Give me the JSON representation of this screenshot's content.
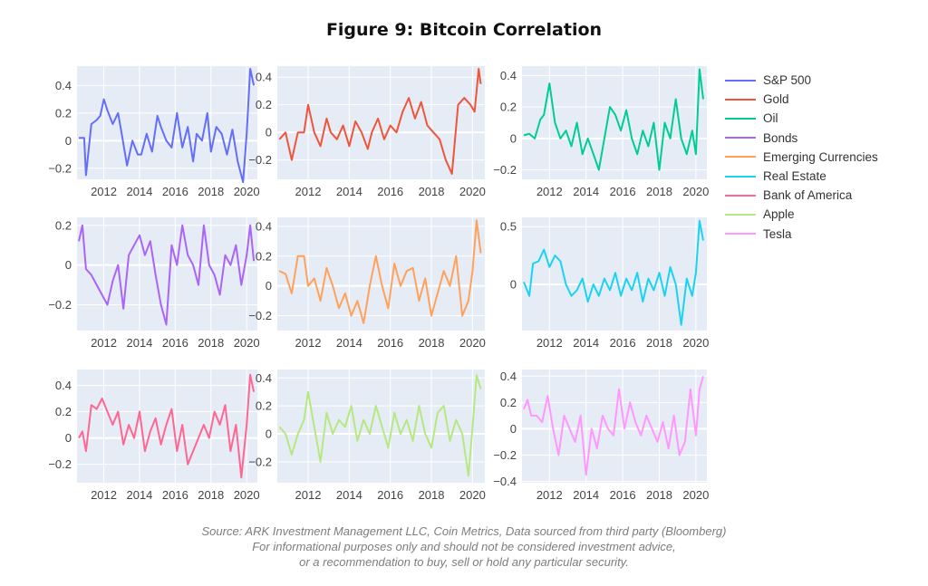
{
  "title": "Figure 9: Bitcoin Correlation",
  "colors": {
    "plot_bg": "#e5ecf6",
    "grid": "#ffffff",
    "tick_text": "#444444"
  },
  "legend": {
    "items": [
      {
        "label": "S&P 500",
        "color": "#636efa"
      },
      {
        "label": "Gold",
        "color": "#ef553b"
      },
      {
        "label": "Oil",
        "color": "#00cc96"
      },
      {
        "label": "Bonds",
        "color": "#ab63fa"
      },
      {
        "label": "Emerging Currencies",
        "color": "#ffa15a"
      },
      {
        "label": "Real Estate",
        "color": "#19d3f3"
      },
      {
        "label": "Bank of America",
        "color": "#ff6692"
      },
      {
        "label": "Apple",
        "color": "#b6e880"
      },
      {
        "label": "Tesla",
        "color": "#ff97ff"
      }
    ]
  },
  "source": {
    "line1": "Source: ARK Investment Management LLC, Coin Metrics, Data sourced from third party (Bloomberg)",
    "line2": "For informational purposes only and should not be considered investment advice,",
    "line3": "or a recommendation to buy, sell or hold any particular security."
  },
  "chart_data": [
    {
      "type": "line",
      "name": "S&P 500",
      "color": "#636efa",
      "xlim": [
        2010.5,
        2020.6
      ],
      "ylim": [
        -0.28,
        0.54
      ],
      "yticks": [
        -0.2,
        0,
        0.2,
        0.4
      ],
      "ytick_labels": [
        "−0.2",
        "0",
        "0.2",
        "0.4"
      ],
      "xticks": [
        2012,
        2014,
        2016,
        2018,
        2020
      ],
      "xtick_labels": [
        "2012",
        "2014",
        "2016",
        "2018",
        "2020"
      ],
      "x": [
        2010.6,
        2010.9,
        2011.0,
        2011.3,
        2011.6,
        2011.8,
        2012.0,
        2012.2,
        2012.5,
        2012.8,
        2013.0,
        2013.3,
        2013.6,
        2013.9,
        2014.1,
        2014.4,
        2014.7,
        2015.0,
        2015.2,
        2015.5,
        2015.8,
        2016.1,
        2016.4,
        2016.7,
        2017.0,
        2017.2,
        2017.5,
        2017.8,
        2018.0,
        2018.3,
        2018.6,
        2018.9,
        2019.2,
        2019.5,
        2019.8,
        2020.0,
        2020.2,
        2020.4
      ],
      "y": [
        0.02,
        0.02,
        -0.25,
        0.12,
        0.15,
        0.18,
        0.3,
        0.22,
        0.12,
        0.2,
        0.05,
        -0.18,
        0.0,
        -0.1,
        -0.1,
        0.05,
        -0.08,
        0.18,
        0.1,
        0.0,
        -0.05,
        0.2,
        -0.05,
        0.1,
        -0.15,
        0.05,
        0.0,
        0.2,
        -0.08,
        0.1,
        0.05,
        -0.1,
        0.08,
        -0.15,
        -0.3,
        0.05,
        0.52,
        0.4
      ]
    },
    {
      "type": "line",
      "name": "Gold",
      "color": "#ef553b",
      "xlim": [
        2010.5,
        2020.6
      ],
      "ylim": [
        -0.34,
        0.48
      ],
      "yticks": [
        -0.2,
        0,
        0.2,
        0.4
      ],
      "ytick_labels": [
        "−0.2",
        "0",
        "0.2",
        "0.4"
      ],
      "xticks": [
        2012,
        2014,
        2016,
        2018,
        2020
      ],
      "xtick_labels": [
        "2012",
        "2014",
        "2016",
        "2018",
        "2020"
      ],
      "x": [
        2010.6,
        2010.9,
        2011.2,
        2011.5,
        2011.8,
        2012.0,
        2012.3,
        2012.6,
        2012.9,
        2013.1,
        2013.4,
        2013.7,
        2014.0,
        2014.3,
        2014.6,
        2014.9,
        2015.1,
        2015.4,
        2015.7,
        2016.0,
        2016.3,
        2016.6,
        2016.9,
        2017.2,
        2017.5,
        2017.8,
        2018.1,
        2018.4,
        2018.7,
        2019.0,
        2019.3,
        2019.6,
        2019.9,
        2020.1,
        2020.3,
        2020.4
      ],
      "y": [
        -0.05,
        0.0,
        -0.2,
        0.0,
        0.0,
        0.2,
        0.0,
        -0.1,
        0.1,
        0.0,
        -0.05,
        0.05,
        -0.1,
        0.08,
        0.0,
        -0.12,
        0.0,
        0.1,
        -0.05,
        0.05,
        0.0,
        0.15,
        0.25,
        0.1,
        0.22,
        0.05,
        0.0,
        -0.05,
        -0.2,
        -0.3,
        0.2,
        0.25,
        0.2,
        0.15,
        0.46,
        0.35
      ]
    },
    {
      "type": "line",
      "name": "Oil",
      "color": "#00cc96",
      "xlim": [
        2010.5,
        2020.6
      ],
      "ylim": [
        -0.26,
        0.46
      ],
      "yticks": [
        -0.2,
        0,
        0.2,
        0.4
      ],
      "ytick_labels": [
        "−0.2",
        "0",
        "0.2",
        "0.4"
      ],
      "xticks": [
        2012,
        2014,
        2016,
        2018,
        2020
      ],
      "xtick_labels": [
        "2012",
        "2014",
        "2016",
        "2018",
        "2020"
      ],
      "x": [
        2010.6,
        2010.9,
        2011.2,
        2011.5,
        2011.7,
        2012.0,
        2012.3,
        2012.6,
        2012.9,
        2013.2,
        2013.5,
        2013.8,
        2014.1,
        2014.4,
        2014.7,
        2015.0,
        2015.3,
        2015.6,
        2015.9,
        2016.2,
        2016.5,
        2016.8,
        2017.1,
        2017.4,
        2017.7,
        2018.0,
        2018.3,
        2018.6,
        2018.9,
        2019.2,
        2019.5,
        2019.8,
        2020.0,
        2020.2,
        2020.4
      ],
      "y": [
        0.02,
        0.03,
        0.0,
        0.12,
        0.15,
        0.35,
        0.1,
        0.0,
        0.05,
        -0.05,
        0.1,
        -0.1,
        0.0,
        -0.1,
        -0.2,
        0.0,
        0.2,
        0.15,
        0.05,
        0.18,
        0.0,
        -0.1,
        0.05,
        -0.05,
        0.1,
        -0.2,
        0.1,
        0.0,
        0.25,
        0.0,
        -0.1,
        0.05,
        -0.1,
        0.44,
        0.25
      ]
    },
    {
      "type": "line",
      "name": "Bonds",
      "color": "#ab63fa",
      "xlim": [
        2010.5,
        2020.6
      ],
      "ylim": [
        -0.33,
        0.24
      ],
      "yticks": [
        -0.2,
        0,
        0.2
      ],
      "ytick_labels": [
        "−0.2",
        "0",
        "0.2"
      ],
      "xticks": [
        2012,
        2014,
        2016,
        2018,
        2020
      ],
      "xtick_labels": [
        "2012",
        "2014",
        "2016",
        "2018",
        "2020"
      ],
      "x": [
        2010.6,
        2010.8,
        2011.0,
        2011.3,
        2011.6,
        2011.9,
        2012.2,
        2012.5,
        2012.8,
        2013.1,
        2013.4,
        2013.7,
        2014.0,
        2014.3,
        2014.6,
        2014.9,
        2015.2,
        2015.5,
        2015.8,
        2016.1,
        2016.4,
        2016.7,
        2017.0,
        2017.3,
        2017.6,
        2017.9,
        2018.2,
        2018.5,
        2018.8,
        2019.1,
        2019.4,
        2019.7,
        2020.0,
        2020.2,
        2020.4
      ],
      "y": [
        0.12,
        0.2,
        -0.02,
        -0.05,
        -0.1,
        -0.15,
        -0.2,
        -0.08,
        0.0,
        -0.22,
        0.05,
        0.1,
        0.15,
        0.05,
        0.12,
        -0.05,
        -0.2,
        -0.3,
        0.1,
        0.0,
        0.2,
        0.05,
        0.0,
        -0.1,
        0.2,
        0.0,
        -0.05,
        -0.15,
        0.05,
        0.0,
        0.1,
        -0.1,
        0.05,
        0.2,
        0.02
      ]
    },
    {
      "type": "line",
      "name": "Emerging Currencies",
      "color": "#ffa15a",
      "xlim": [
        2010.5,
        2020.6
      ],
      "ylim": [
        -0.3,
        0.46
      ],
      "yticks": [
        -0.2,
        0,
        0.2,
        0.4
      ],
      "ytick_labels": [
        "−0.2",
        "0",
        "0.2",
        "0.4"
      ],
      "xticks": [
        2012,
        2014,
        2016,
        2018,
        2020
      ],
      "xtick_labels": [
        "2012",
        "2014",
        "2016",
        "2018",
        "2020"
      ],
      "x": [
        2010.6,
        2010.9,
        2011.2,
        2011.5,
        2011.8,
        2012.0,
        2012.3,
        2012.6,
        2012.9,
        2013.2,
        2013.5,
        2013.8,
        2014.1,
        2014.4,
        2014.7,
        2015.0,
        2015.3,
        2015.6,
        2015.9,
        2016.2,
        2016.5,
        2016.8,
        2017.1,
        2017.4,
        2017.7,
        2018.0,
        2018.3,
        2018.6,
        2018.9,
        2019.2,
        2019.5,
        2019.8,
        2020.0,
        2020.2,
        2020.4
      ],
      "y": [
        0.1,
        0.08,
        -0.05,
        0.2,
        0.2,
        0.0,
        0.05,
        -0.1,
        0.12,
        0.0,
        -0.15,
        -0.05,
        -0.2,
        -0.1,
        -0.25,
        0.0,
        0.2,
        0.0,
        -0.15,
        0.15,
        0.0,
        0.1,
        0.12,
        -0.1,
        0.05,
        -0.2,
        -0.05,
        0.1,
        0.0,
        0.2,
        -0.2,
        -0.1,
        0.1,
        0.44,
        0.22
      ]
    },
    {
      "type": "line",
      "name": "Real Estate",
      "color": "#19d3f3",
      "xlim": [
        2010.5,
        2020.6
      ],
      "ylim": [
        -0.4,
        0.58
      ],
      "yticks": [
        0,
        0.5
      ],
      "ytick_labels": [
        "0",
        "0.5"
      ],
      "xticks": [
        2012,
        2014,
        2016,
        2018,
        2020
      ],
      "xtick_labels": [
        "2012",
        "2014",
        "2016",
        "2018",
        "2020"
      ],
      "x": [
        2010.6,
        2010.9,
        2011.1,
        2011.4,
        2011.7,
        2012.0,
        2012.3,
        2012.6,
        2012.9,
        2013.2,
        2013.5,
        2013.8,
        2014.1,
        2014.4,
        2014.7,
        2015.0,
        2015.3,
        2015.6,
        2015.9,
        2016.2,
        2016.5,
        2016.8,
        2017.1,
        2017.4,
        2017.7,
        2018.0,
        2018.3,
        2018.6,
        2018.9,
        2019.2,
        2019.5,
        2019.8,
        2020.0,
        2020.2,
        2020.4
      ],
      "y": [
        0.02,
        -0.1,
        0.18,
        0.2,
        0.3,
        0.15,
        0.25,
        0.2,
        0.0,
        -0.1,
        -0.05,
        0.05,
        -0.15,
        0.0,
        -0.1,
        0.05,
        -0.05,
        0.1,
        -0.1,
        0.05,
        -0.05,
        0.1,
        -0.15,
        0.05,
        -0.05,
        0.1,
        -0.1,
        0.15,
        0.0,
        -0.35,
        0.05,
        -0.1,
        0.1,
        0.55,
        0.38
      ]
    },
    {
      "type": "line",
      "name": "Bank of America",
      "color": "#ff6692",
      "xlim": [
        2010.5,
        2020.6
      ],
      "ylim": [
        -0.34,
        0.52
      ],
      "yticks": [
        -0.2,
        0,
        0.2,
        0.4
      ],
      "ytick_labels": [
        "−0.2",
        "0",
        "0.2",
        "0.4"
      ],
      "xticks": [
        2012,
        2014,
        2016,
        2018,
        2020
      ],
      "xtick_labels": [
        "2012",
        "2014",
        "2016",
        "2018",
        "2020"
      ],
      "x": [
        2010.6,
        2010.8,
        2011.0,
        2011.3,
        2011.6,
        2011.9,
        2012.2,
        2012.5,
        2012.8,
        2013.1,
        2013.4,
        2013.7,
        2014.0,
        2014.3,
        2014.6,
        2014.9,
        2015.2,
        2015.5,
        2015.8,
        2016.1,
        2016.4,
        2016.7,
        2017.0,
        2017.3,
        2017.6,
        2017.9,
        2018.2,
        2018.5,
        2018.8,
        2019.1,
        2019.4,
        2019.7,
        2020.0,
        2020.2,
        2020.4
      ],
      "y": [
        0.0,
        0.05,
        -0.1,
        0.25,
        0.22,
        0.3,
        0.2,
        0.1,
        0.2,
        -0.05,
        0.1,
        0.0,
        0.2,
        -0.1,
        0.05,
        0.15,
        -0.05,
        0.1,
        0.22,
        -0.1,
        0.1,
        -0.2,
        -0.1,
        0.0,
        0.1,
        0.0,
        0.2,
        0.1,
        0.25,
        -0.1,
        0.1,
        -0.3,
        0.1,
        0.48,
        0.35
      ]
    },
    {
      "type": "line",
      "name": "Apple",
      "color": "#b6e880",
      "xlim": [
        2010.5,
        2020.6
      ],
      "ylim": [
        -0.35,
        0.46
      ],
      "yticks": [
        -0.2,
        0,
        0.2,
        0.4
      ],
      "ytick_labels": [
        "−0.2",
        "0",
        "0.2",
        "0.4"
      ],
      "xticks": [
        2012,
        2014,
        2016,
        2018,
        2020
      ],
      "xtick_labels": [
        "2012",
        "2014",
        "2016",
        "2018",
        "2020"
      ],
      "x": [
        2010.6,
        2010.9,
        2011.2,
        2011.5,
        2011.8,
        2012.0,
        2012.3,
        2012.6,
        2012.9,
        2013.2,
        2013.5,
        2013.8,
        2014.1,
        2014.4,
        2014.7,
        2015.0,
        2015.3,
        2015.6,
        2015.9,
        2016.2,
        2016.5,
        2016.8,
        2017.1,
        2017.4,
        2017.7,
        2018.0,
        2018.3,
        2018.6,
        2018.9,
        2019.2,
        2019.5,
        2019.8,
        2020.0,
        2020.2,
        2020.4
      ],
      "y": [
        0.05,
        0.0,
        -0.15,
        0.0,
        0.1,
        0.3,
        0.05,
        -0.2,
        0.15,
        0.0,
        0.1,
        0.05,
        0.2,
        -0.05,
        0.1,
        0.0,
        0.2,
        0.05,
        -0.1,
        0.15,
        0.0,
        0.1,
        -0.05,
        0.2,
        0.0,
        -0.1,
        0.15,
        0.2,
        -0.05,
        0.1,
        0.0,
        -0.3,
        0.05,
        0.42,
        0.32
      ]
    },
    {
      "type": "line",
      "name": "Tesla",
      "color": "#ff97ff",
      "xlim": [
        2010.5,
        2020.6
      ],
      "ylim": [
        -0.41,
        0.45
      ],
      "yticks": [
        -0.4,
        -0.2,
        0,
        0.2,
        0.4
      ],
      "ytick_labels": [
        "−0.4",
        "−0.2",
        "0",
        "0.2",
        "0.4"
      ],
      "xticks": [
        2012,
        2014,
        2016,
        2018,
        2020
      ],
      "xtick_labels": [
        "2012",
        "2014",
        "2016",
        "2018",
        "2020"
      ],
      "x": [
        2010.6,
        2010.8,
        2011.0,
        2011.3,
        2011.6,
        2011.9,
        2012.2,
        2012.5,
        2012.8,
        2013.1,
        2013.4,
        2013.7,
        2014.0,
        2014.3,
        2014.6,
        2014.9,
        2015.2,
        2015.5,
        2015.8,
        2016.1,
        2016.4,
        2016.7,
        2017.0,
        2017.3,
        2017.6,
        2017.9,
        2018.2,
        2018.5,
        2018.8,
        2019.1,
        2019.4,
        2019.7,
        2020.0,
        2020.2,
        2020.4
      ],
      "y": [
        0.15,
        0.22,
        0.1,
        0.1,
        0.05,
        0.25,
        0.0,
        -0.2,
        0.1,
        0.0,
        -0.1,
        0.1,
        -0.35,
        0.0,
        -0.15,
        0.1,
        0.0,
        -0.05,
        0.3,
        0.0,
        0.2,
        0.05,
        -0.05,
        0.1,
        0.0,
        -0.1,
        0.05,
        -0.15,
        0.1,
        -0.2,
        -0.1,
        0.3,
        -0.05,
        0.3,
        0.4
      ]
    }
  ]
}
